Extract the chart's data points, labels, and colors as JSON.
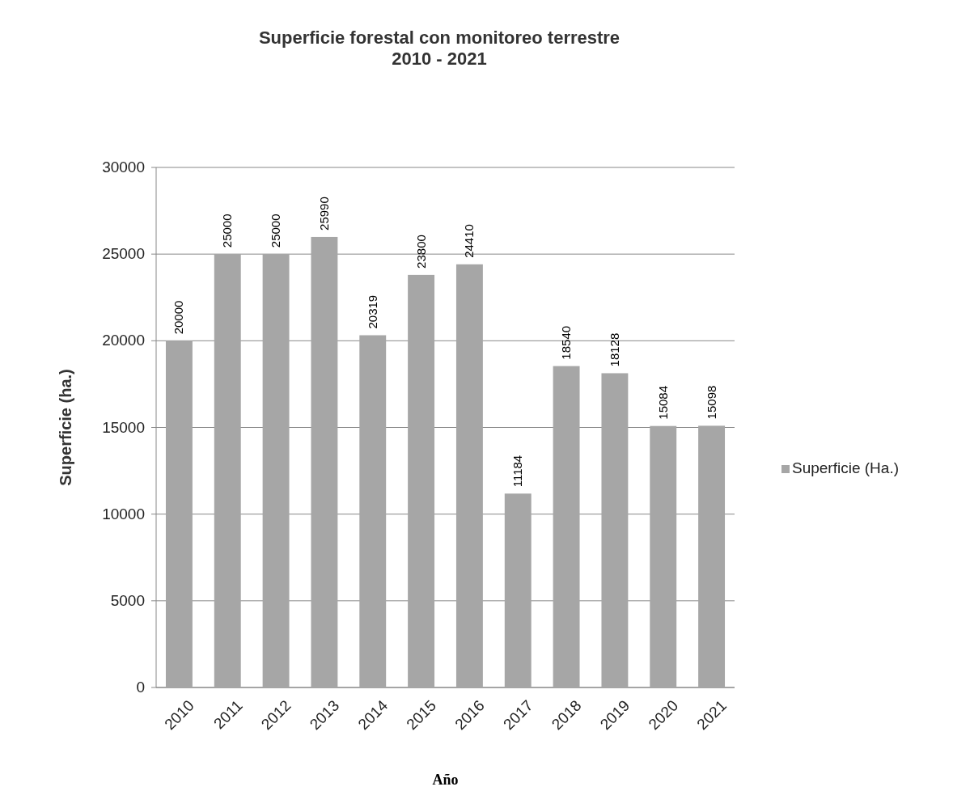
{
  "chart_data": {
    "type": "bar",
    "title": "Superficie forestal con monitoreo terrestre\n2010 - 2021",
    "xlabel": "Año",
    "ylabel": "Superficie (ha.)",
    "categories": [
      "2010",
      "2011",
      "2012",
      "2013",
      "2014",
      "2015",
      "2016",
      "2017",
      "2018",
      "2019",
      "2020",
      "2021"
    ],
    "series": [
      {
        "name": "Superficie (Ha.)",
        "color": "#a6a6a6",
        "values": [
          20000,
          25000,
          25000,
          25990,
          20319,
          23800,
          24410,
          11184,
          18540,
          18128,
          15084,
          15098
        ]
      }
    ],
    "ylim": [
      0,
      30000
    ],
    "yticks": [
      0,
      5000,
      10000,
      15000,
      20000,
      25000,
      30000
    ],
    "grid": "y",
    "legend": "right",
    "data_labels": true
  }
}
